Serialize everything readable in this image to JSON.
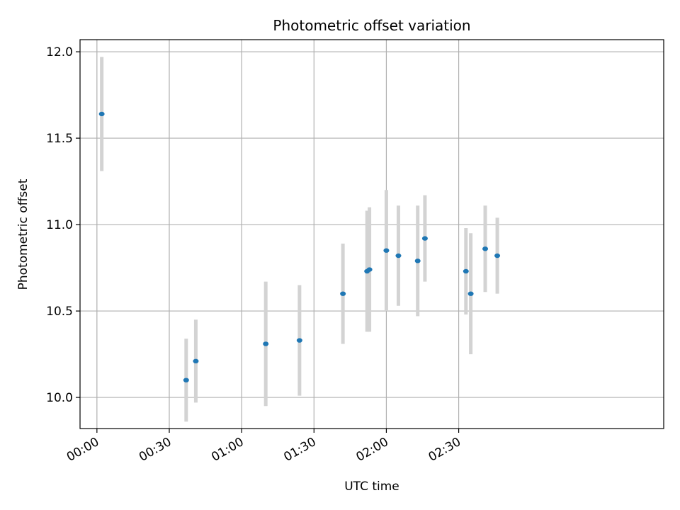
{
  "chart_data": {
    "type": "scatter",
    "title": "Photometric offset variation",
    "xlabel": "UTC time",
    "ylabel": "Photometric offset",
    "x_unit": "time",
    "xlim": [
      "23:53",
      "03:55"
    ],
    "ylim": [
      9.82,
      12.07
    ],
    "xticks": [
      "00:00",
      "00:30",
      "01:00",
      "01:30",
      "02:00",
      "02:30"
    ],
    "yticks": [
      10.0,
      10.5,
      11.0,
      11.5,
      12.0
    ],
    "grid": true,
    "legend": "none",
    "colors": {
      "point": "#1f77b4",
      "errorbar": "#d3d3d3",
      "grid": "#b0b0b0"
    },
    "series": [
      {
        "points": [
          {
            "x": "00:02",
            "y": 11.64,
            "yerr": 0.33
          },
          {
            "x": "00:37",
            "y": 10.1,
            "yerr": 0.24
          },
          {
            "x": "00:41",
            "y": 10.21,
            "yerr": 0.24
          },
          {
            "x": "01:10",
            "y": 10.31,
            "yerr": 0.36
          },
          {
            "x": "01:24",
            "y": 10.33,
            "yerr": 0.32
          },
          {
            "x": "01:42",
            "y": 10.6,
            "yerr": 0.29
          },
          {
            "x": "01:52",
            "y": 10.73,
            "yerr": 0.35
          },
          {
            "x": "01:53",
            "y": 10.74,
            "yerr": 0.36
          },
          {
            "x": "02:00",
            "y": 10.85,
            "yerr": 0.35
          },
          {
            "x": "02:05",
            "y": 10.82,
            "yerr": 0.29
          },
          {
            "x": "02:13",
            "y": 10.79,
            "yerr": 0.32
          },
          {
            "x": "02:16",
            "y": 10.92,
            "yerr": 0.25
          },
          {
            "x": "02:33",
            "y": 10.73,
            "yerr": 0.25
          },
          {
            "x": "02:35",
            "y": 10.6,
            "yerr": 0.35
          },
          {
            "x": "02:41",
            "y": 10.86,
            "yerr": 0.25
          },
          {
            "x": "02:46",
            "y": 10.82,
            "yerr": 0.22
          }
        ]
      }
    ]
  }
}
